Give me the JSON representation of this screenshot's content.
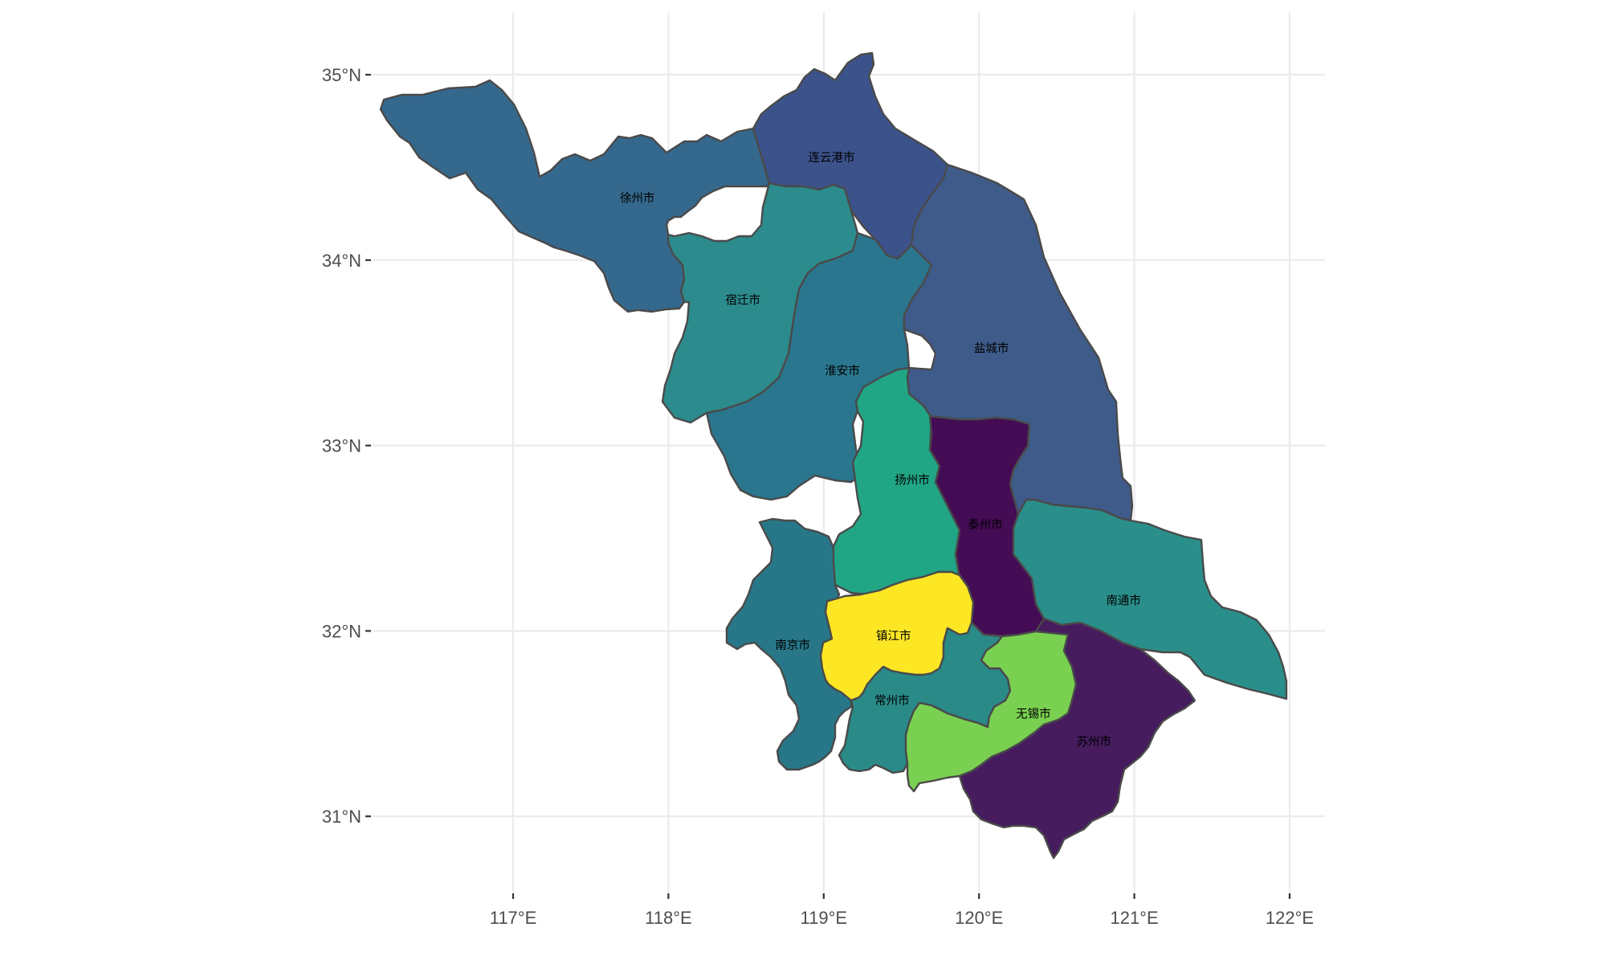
{
  "axes": {
    "lat_ticks": [
      {
        "value": 35,
        "label": "35°N"
      },
      {
        "value": 34,
        "label": "34°N"
      },
      {
        "value": 33,
        "label": "33°N"
      },
      {
        "value": 32,
        "label": "32°N"
      },
      {
        "value": 31,
        "label": "31°N"
      }
    ],
    "lon_ticks": [
      {
        "value": 117,
        "label": "117°E"
      },
      {
        "value": 118,
        "label": "118°E"
      },
      {
        "value": 119,
        "label": "119°E"
      },
      {
        "value": 120,
        "label": "120°E"
      },
      {
        "value": 121,
        "label": "121°E"
      },
      {
        "value": 122,
        "label": "122°E"
      }
    ],
    "lon_range": [
      116.35,
      122.25
    ],
    "lat_range": [
      30.45,
      35.3
    ]
  },
  "colors": {
    "background": "#ffffff",
    "grid": "#ebebeb",
    "border": "#4a4a4a"
  },
  "regions": [
    {
      "name": "徐州市",
      "color": "#35688d",
      "label_lon": 117.8,
      "label_lat": 34.33
    },
    {
      "name": "连云港市",
      "color": "#3b528b",
      "label_lon": 119.05,
      "label_lat": 34.55
    },
    {
      "name": "宿迁市",
      "color": "#2c8b8c",
      "label_lon": 118.48,
      "label_lat": 33.78
    },
    {
      "name": "淮安市",
      "color": "#2a768e",
      "label_lon": 119.12,
      "label_lat": 33.4
    },
    {
      "name": "盐城市",
      "color": "#3e5b8a",
      "label_lon": 120.08,
      "label_lat": 33.52
    },
    {
      "name": "扬州市",
      "color": "#21a685",
      "label_lon": 119.57,
      "label_lat": 32.81
    },
    {
      "name": "泰州市",
      "color": "#440c55",
      "label_lon": 120.04,
      "label_lat": 32.57
    },
    {
      "name": "南通市",
      "color": "#2a8f8a",
      "label_lon": 120.93,
      "label_lat": 32.16
    },
    {
      "name": "南京市",
      "color": "#277788",
      "label_lon": 118.8,
      "label_lat": 31.92
    },
    {
      "name": "镇江市",
      "color": "#fde725",
      "label_lon": 119.45,
      "label_lat": 31.97
    },
    {
      "name": "常州市",
      "color": "#2a8a88",
      "label_lon": 119.44,
      "label_lat": 31.62
    },
    {
      "name": "无锡市",
      "color": "#7ad151",
      "label_lon": 120.35,
      "label_lat": 31.55
    },
    {
      "name": "苏州市",
      "color": "#461c5f",
      "label_lon": 120.74,
      "label_lat": 31.4
    }
  ]
}
